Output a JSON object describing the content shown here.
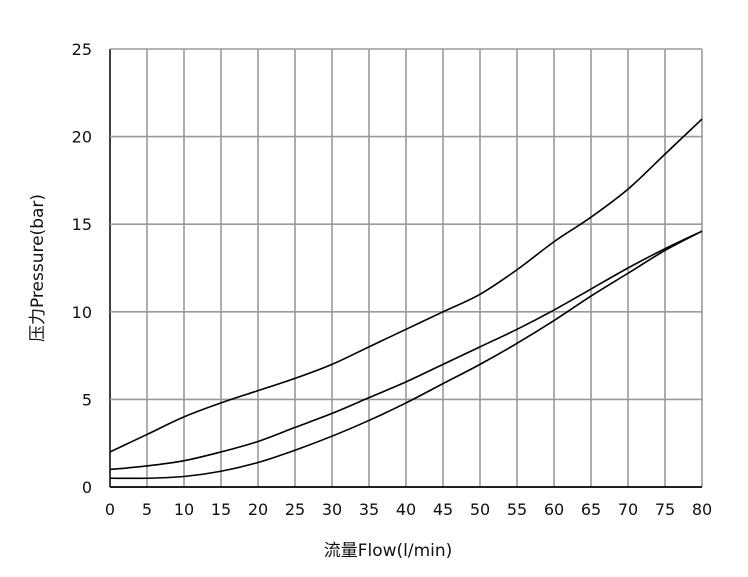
{
  "chart_data": {
    "type": "line",
    "title": "",
    "xlabel": "流量Flow(l/min)",
    "ylabel": "压力Pressure(bar)",
    "xlim": [
      0,
      80
    ],
    "ylim": [
      0,
      25
    ],
    "xticks": [
      0,
      5,
      10,
      15,
      20,
      25,
      30,
      35,
      40,
      45,
      50,
      55,
      60,
      65,
      70,
      75,
      80
    ],
    "yticks": [
      0,
      5,
      10,
      15,
      20,
      25
    ],
    "grid": true,
    "x": [
      0,
      5,
      10,
      15,
      20,
      25,
      30,
      35,
      40,
      45,
      50,
      55,
      60,
      65,
      70,
      75,
      80
    ],
    "series": [
      {
        "values": [
          2,
          3,
          4,
          4.8,
          5.5,
          6.2,
          7,
          8,
          9,
          10,
          11,
          12.4,
          14,
          15.4,
          17,
          19,
          21
        ]
      },
      {
        "values": [
          1,
          1.2,
          1.5,
          2,
          2.6,
          3.4,
          4.2,
          5.1,
          6,
          7,
          8,
          9,
          10.1,
          11.3,
          12.5,
          13.6,
          14.6
        ]
      },
      {
        "values": [
          0.5,
          0.5,
          0.6,
          0.9,
          1.4,
          2.1,
          2.9,
          3.8,
          4.8,
          5.9,
          7,
          8.2,
          9.5,
          10.9,
          12.2,
          13.5,
          14.6
        ]
      }
    ],
    "colors": {
      "line": "#000000",
      "grid": "#999999"
    }
  }
}
